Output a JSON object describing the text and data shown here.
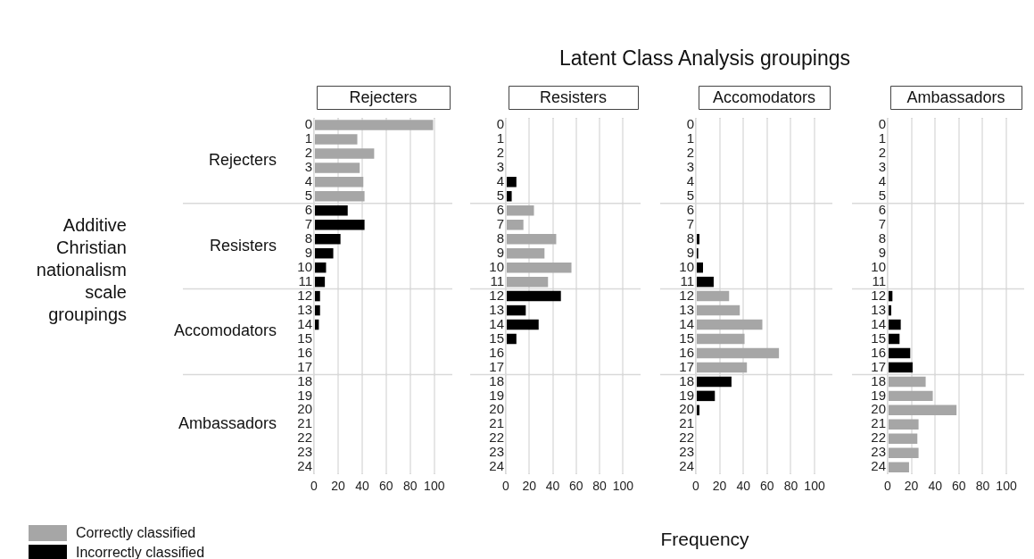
{
  "chart_data": [
    {
      "type": "bar",
      "orientation": "horizontal",
      "stacked": true,
      "subtitle": "Rejecters",
      "ylabel": "Additive Christian nationalism scale groupings",
      "categories": [
        "0",
        "1",
        "2",
        "3",
        "4",
        "5",
        "6",
        "7",
        "8",
        "9",
        "10",
        "11",
        "12",
        "13",
        "14",
        "15",
        "16",
        "17",
        "18",
        "19",
        "20",
        "21",
        "22",
        "23",
        "24"
      ],
      "series": [
        {
          "name": "Correctly classified",
          "color": "#a6a6a6",
          "values": [
            99,
            36,
            50,
            38,
            41,
            42,
            null,
            null,
            null,
            null,
            null,
            null,
            null,
            null,
            null,
            null,
            null,
            null,
            null,
            null,
            null,
            null,
            null,
            null,
            null
          ]
        },
        {
          "name": "Incorrectly classified",
          "color": "#000000",
          "values": [
            null,
            null,
            null,
            null,
            null,
            null,
            28,
            42,
            22,
            16,
            10,
            9,
            5,
            5,
            4,
            null,
            null,
            null,
            null,
            null,
            null,
            null,
            null,
            null,
            null
          ]
        }
      ],
      "xlim": [
        0,
        115
      ],
      "xticks": [
        0,
        20,
        40,
        60,
        80,
        100
      ],
      "grid": "x",
      "legend": "bottom left",
      "bands": [
        {
          "axis": "y",
          "from": "0",
          "to": "5",
          "label": "Rejecters",
          "color": "#ffffff"
        },
        {
          "axis": "y",
          "from": "6",
          "to": "11",
          "label": "Resisters",
          "color": "#ffffff"
        },
        {
          "axis": "y",
          "from": "12",
          "to": "17",
          "label": "Accomodators",
          "color": "#ffffff"
        },
        {
          "axis": "y",
          "from": "18",
          "to": "24",
          "label": "Ambassadors",
          "color": "#ffffff"
        }
      ]
    },
    {
      "type": "bar",
      "orientation": "horizontal",
      "stacked": true,
      "subtitle": "Resisters",
      "categories": [
        "0",
        "1",
        "2",
        "3",
        "4",
        "5",
        "6",
        "7",
        "8",
        "9",
        "10",
        "11",
        "12",
        "13",
        "14",
        "15",
        "16",
        "17",
        "18",
        "19",
        "20",
        "21",
        "22",
        "23",
        "24"
      ],
      "series": [
        {
          "color": "#a6a6a6",
          "values": [
            null,
            null,
            null,
            null,
            null,
            null,
            24,
            15,
            43,
            33,
            56,
            36,
            null,
            null,
            null,
            null,
            null,
            null,
            null,
            null,
            null,
            null,
            null,
            null,
            null
          ]
        },
        {
          "color": "#000000",
          "values": [
            null,
            null,
            null,
            null,
            9,
            5,
            null,
            null,
            null,
            null,
            null,
            null,
            47,
            17,
            28,
            9,
            null,
            null,
            null,
            null,
            null,
            null,
            null,
            null,
            null
          ]
        }
      ],
      "xlim": [
        0,
        115
      ],
      "xticks": [
        0,
        20,
        40,
        60,
        80,
        100
      ],
      "grid": "x",
      "bands": [
        {
          "axis": "y",
          "from": "0",
          "to": "5",
          "color": "#ffffff"
        },
        {
          "axis": "y",
          "from": "6",
          "to": "11",
          "color": "#ffffff"
        },
        {
          "axis": "y",
          "from": "12",
          "to": "17",
          "color": "#ffffff"
        },
        {
          "axis": "y",
          "from": "18",
          "to": "24",
          "color": "#ffffff"
        }
      ]
    },
    {
      "type": "bar",
      "orientation": "horizontal",
      "stacked": true,
      "title": "Latent Class Analysis groupings",
      "subtitle": "Accomodators",
      "xlabel": "Frequency",
      "categories": [
        "0",
        "1",
        "2",
        "3",
        "4",
        "5",
        "6",
        "7",
        "8",
        "9",
        "10",
        "11",
        "12",
        "13",
        "14",
        "15",
        "16",
        "17",
        "18",
        "19",
        "20",
        "21",
        "22",
        "23",
        "24"
      ],
      "series": [
        {
          "color": "#a6a6a6",
          "values": [
            null,
            null,
            null,
            null,
            null,
            null,
            null,
            null,
            null,
            null,
            null,
            null,
            28,
            37,
            56,
            41,
            70,
            43,
            null,
            null,
            null,
            null,
            null,
            null,
            null
          ]
        },
        {
          "color": "#000000",
          "values": [
            null,
            null,
            null,
            null,
            null,
            null,
            null,
            null,
            3,
            2,
            6,
            15,
            null,
            null,
            null,
            null,
            null,
            null,
            30,
            16,
            3,
            null,
            null,
            null,
            null
          ]
        }
      ],
      "xlim": [
        0,
        115
      ],
      "xticks": [
        0,
        20,
        40,
        60,
        80,
        100
      ],
      "grid": "x",
      "bands": [
        {
          "axis": "y",
          "from": "0",
          "to": "5",
          "color": "#ffffff"
        },
        {
          "axis": "y",
          "from": "6",
          "to": "11",
          "color": "#ffffff"
        },
        {
          "axis": "y",
          "from": "12",
          "to": "17",
          "color": "#ffffff"
        },
        {
          "axis": "y",
          "from": "18",
          "to": "24",
          "color": "#ffffff"
        }
      ]
    },
    {
      "type": "bar",
      "orientation": "horizontal",
      "stacked": true,
      "subtitle": "Ambassadors",
      "categories": [
        "0",
        "1",
        "2",
        "3",
        "4",
        "5",
        "6",
        "7",
        "8",
        "9",
        "10",
        "11",
        "12",
        "13",
        "14",
        "15",
        "16",
        "17",
        "18",
        "19",
        "20",
        "21",
        "22",
        "23",
        "24"
      ],
      "series": [
        {
          "color": "#a6a6a6",
          "values": [
            null,
            null,
            null,
            null,
            null,
            null,
            null,
            null,
            null,
            null,
            null,
            null,
            null,
            null,
            null,
            null,
            null,
            null,
            32,
            38,
            58,
            26,
            25,
            26,
            18
          ]
        },
        {
          "color": "#000000",
          "values": [
            null,
            null,
            null,
            null,
            null,
            null,
            null,
            null,
            null,
            null,
            null,
            null,
            4,
            3,
            11,
            10,
            19,
            21,
            null,
            null,
            null,
            null,
            null,
            null,
            null
          ]
        }
      ],
      "xlim": [
        0,
        115
      ],
      "xticks": [
        0,
        20,
        40,
        60,
        80,
        100
      ],
      "grid": "x",
      "bands": [
        {
          "axis": "y",
          "from": "0",
          "to": "5",
          "color": "#ffffff"
        },
        {
          "axis": "y",
          "from": "6",
          "to": "11",
          "color": "#ffffff"
        },
        {
          "axis": "y",
          "from": "12",
          "to": "17",
          "color": "#ffffff"
        },
        {
          "axis": "y",
          "from": "18",
          "to": "24",
          "color": "#ffffff"
        }
      ]
    }
  ]
}
